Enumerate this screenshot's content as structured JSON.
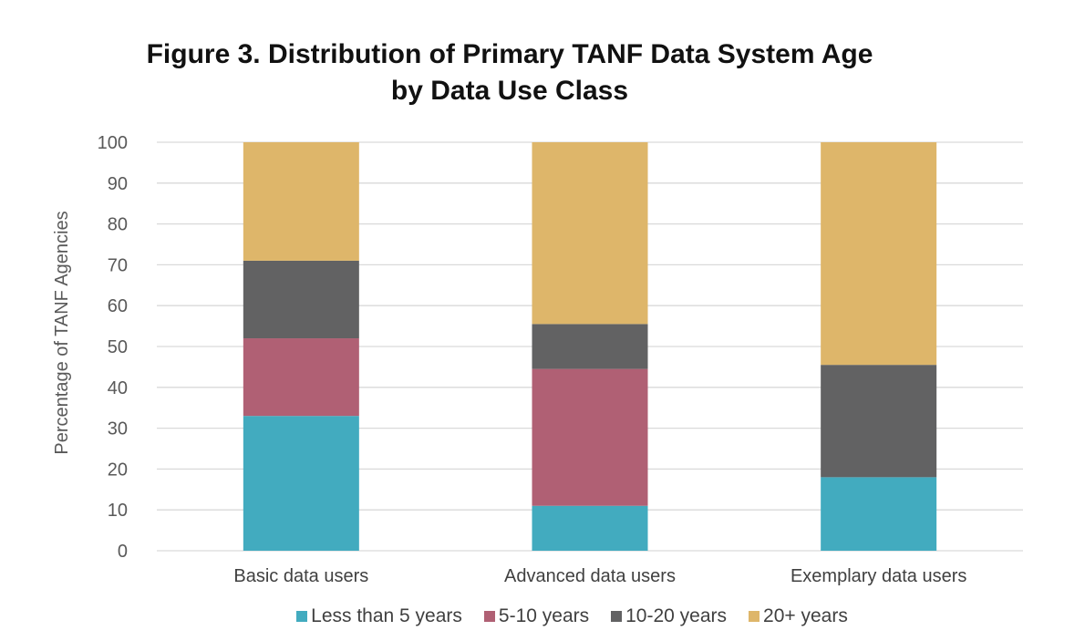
{
  "chart_data": {
    "type": "stacked-bar",
    "title": "Figure 3. Distribution of Primary TANF Data System Age",
    "title_line2": "by Data Use Class",
    "xlabel": "",
    "ylabel": "Percentage of TANF Agencies",
    "ylim": [
      0,
      100
    ],
    "yticks": [
      0,
      10,
      20,
      30,
      40,
      50,
      60,
      70,
      80,
      90,
      100
    ],
    "grid": true,
    "legend_position": "bottom",
    "categories": [
      "Basic data users",
      "Advanced data users",
      "Exemplary data users"
    ],
    "series": [
      {
        "name": "Less than 5 years",
        "color": "#42ABBF",
        "values": [
          33,
          11,
          18
        ]
      },
      {
        "name": "5-10 years",
        "color": "#B06074",
        "values": [
          19,
          33.5,
          0
        ]
      },
      {
        "name": "10-20 years",
        "color": "#626263",
        "values": [
          19,
          11,
          27.5
        ]
      },
      {
        "name": "20+ years",
        "color": "#DEB66A",
        "values": [
          29,
          44.5,
          54.5
        ]
      }
    ]
  }
}
